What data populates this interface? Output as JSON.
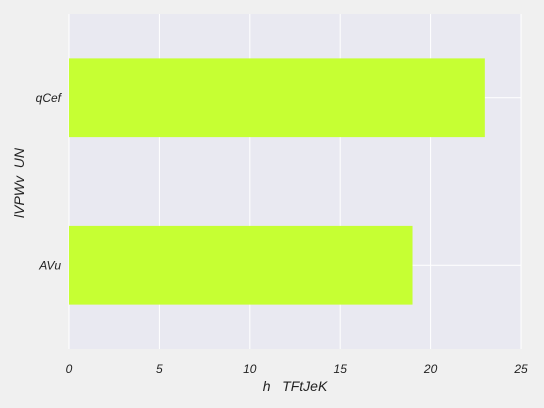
{
  "chart_data": {
    "type": "bar",
    "orientation": "horizontal",
    "categories": [
      "qCef",
      "AVu"
    ],
    "values": [
      23,
      19
    ],
    "xlabel": "h   TFtJeK",
    "ylabel": "lVPWv  UN",
    "xlim": [
      0,
      25
    ],
    "xticks": [
      0,
      5,
      10,
      15,
      20,
      25
    ],
    "grid": true,
    "colors": {
      "bar": "#c6ff33",
      "plot_background": "#e9e9f1",
      "figure_background": "#f0f0f0",
      "grid": "#ffffff"
    }
  }
}
